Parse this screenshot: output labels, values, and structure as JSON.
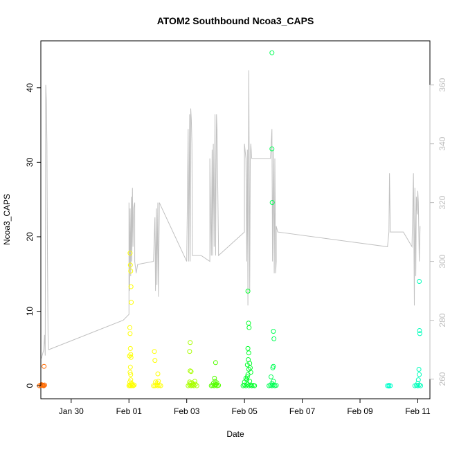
{
  "chart_data": {
    "type": "scatter",
    "title": "ATOM2 Southbound Ncoa3_CAPS",
    "xlabel": "Date",
    "ylabel": "Ncoa3_CAPS",
    "x_ticks": [
      "Jan 30",
      "Feb 01",
      "Feb 03",
      "Feb 05",
      "Feb 07",
      "Feb 09",
      "Feb 11"
    ],
    "xlim": [
      28.95,
      42.42
    ],
    "ylim": [
      -1.75,
      46.3
    ],
    "y_ticks": [
      0,
      10,
      20,
      30,
      40
    ],
    "y2lim": [
      253.3,
      375.0
    ],
    "y2_ticks": [
      260,
      280,
      300,
      320,
      340,
      360
    ],
    "grid": false,
    "legend": "none",
    "series": [
      {
        "color": "#ff6a00",
        "points": [
          [
            28.9,
            0
          ],
          [
            28.95,
            0.05
          ],
          [
            29.0,
            0.1
          ],
          [
            29.05,
            0
          ],
          [
            28.97,
            0.15
          ],
          [
            29.02,
            0.05
          ],
          [
            29.08,
            0.1
          ],
          [
            29.04,
            0
          ],
          [
            29.06,
            2.6
          ]
        ]
      },
      {
        "color": "#ffff00",
        "points": [
          [
            32.0,
            0
          ],
          [
            32.02,
            0.1
          ],
          [
            32.05,
            0
          ],
          [
            32.08,
            0.2
          ],
          [
            32.1,
            0
          ],
          [
            32.12,
            0.05
          ],
          [
            32.15,
            0
          ],
          [
            32.18,
            0.1
          ],
          [
            32.03,
            0.5
          ],
          [
            32.06,
            0.8
          ],
          [
            32.09,
            0.3
          ],
          [
            32.04,
            17.8
          ],
          [
            32.05,
            16.2
          ],
          [
            32.06,
            15.4
          ],
          [
            32.07,
            13.3
          ],
          [
            32.08,
            11.2
          ],
          [
            32.03,
            7.8
          ],
          [
            32.04,
            7.0
          ],
          [
            32.05,
            5.0
          ],
          [
            32.06,
            4.2
          ],
          [
            32.02,
            4.0
          ],
          [
            32.07,
            3.8
          ],
          [
            32.05,
            2.5
          ],
          [
            32.06,
            1.5
          ],
          [
            32.04,
            1.8
          ],
          [
            32.85,
            0
          ],
          [
            32.9,
            0
          ],
          [
            32.95,
            0.1
          ],
          [
            33.0,
            0
          ],
          [
            33.05,
            0.05
          ],
          [
            33.1,
            0
          ],
          [
            32.92,
            0.5
          ],
          [
            32.98,
            0.4
          ],
          [
            33.02,
            0.6
          ],
          [
            32.88,
            4.6
          ],
          [
            32.9,
            3.4
          ],
          [
            33.0,
            1.6
          ]
        ]
      },
      {
        "color": "#a8ff00",
        "points": [
          [
            34.05,
            0
          ],
          [
            34.1,
            0.1
          ],
          [
            34.15,
            0
          ],
          [
            34.2,
            0.05
          ],
          [
            34.25,
            0
          ],
          [
            34.3,
            0.2
          ],
          [
            34.35,
            0
          ],
          [
            34.12,
            0.3
          ],
          [
            34.22,
            0.2
          ],
          [
            34.1,
            0.5
          ],
          [
            34.18,
            0.4
          ],
          [
            34.28,
            0.6
          ],
          [
            34.12,
            5.8
          ],
          [
            34.1,
            4.6
          ],
          [
            34.15,
            1.9
          ],
          [
            34.12,
            2.0
          ]
        ]
      },
      {
        "color": "#55ff00",
        "points": [
          [
            34.85,
            0
          ],
          [
            34.9,
            0.05
          ],
          [
            34.95,
            0
          ],
          [
            35.0,
            0.1
          ],
          [
            35.05,
            0
          ],
          [
            35.1,
            0.05
          ],
          [
            34.92,
            0.3
          ],
          [
            34.98,
            0.6
          ],
          [
            35.02,
            0.2
          ],
          [
            34.96,
            1.0
          ],
          [
            35.0,
            3.1
          ],
          [
            35.04,
            0.4
          ]
        ]
      },
      {
        "color": "#00ff2a",
        "points": [
          [
            35.95,
            0
          ],
          [
            36.0,
            0.1
          ],
          [
            36.05,
            0
          ],
          [
            36.1,
            0.2
          ],
          [
            36.15,
            0
          ],
          [
            36.2,
            0.1
          ],
          [
            36.25,
            0
          ],
          [
            36.3,
            0.05
          ],
          [
            36.35,
            0
          ],
          [
            36.0,
            0.5
          ],
          [
            36.05,
            1.0
          ],
          [
            36.08,
            0.8
          ],
          [
            36.12,
            1.5
          ],
          [
            36.15,
            2.2
          ],
          [
            36.18,
            0.6
          ],
          [
            36.1,
            1.2
          ],
          [
            36.12,
            12.7
          ],
          [
            36.14,
            8.4
          ],
          [
            36.16,
            7.8
          ],
          [
            36.12,
            5.0
          ],
          [
            36.15,
            4.4
          ],
          [
            36.13,
            3.5
          ],
          [
            36.18,
            3.0
          ],
          [
            36.2,
            2.4
          ],
          [
            36.1,
            2.8
          ],
          [
            36.22,
            1.8
          ]
        ]
      },
      {
        "color": "#00ff55",
        "points": [
          [
            36.85,
            0
          ],
          [
            36.9,
            0.05
          ],
          [
            36.95,
            0
          ],
          [
            37.0,
            0.1
          ],
          [
            37.05,
            0
          ],
          [
            37.1,
            0.05
          ],
          [
            36.95,
            0.3
          ],
          [
            37.0,
            0.6
          ],
          [
            36.92,
            1.2
          ],
          [
            36.95,
            44.7
          ],
          [
            36.95,
            31.8
          ],
          [
            36.96,
            24.6
          ],
          [
            37.0,
            7.3
          ],
          [
            37.02,
            6.3
          ],
          [
            37.0,
            2.6
          ],
          [
            36.98,
            2.4
          ]
        ]
      },
      {
        "color": "#00ffcc",
        "points": [
          [
            40.95,
            0
          ],
          [
            41.0,
            0.05
          ],
          [
            41.05,
            0
          ],
          [
            41.0,
            -0.05
          ]
        ]
      },
      {
        "color": "#00ffbb",
        "points": [
          [
            41.9,
            0
          ],
          [
            41.95,
            0.05
          ],
          [
            42.0,
            0
          ],
          [
            42.05,
            0.1
          ],
          [
            42.1,
            0
          ],
          [
            42.0,
            0.3
          ],
          [
            42.02,
            0.8
          ],
          [
            42.05,
            1.5
          ],
          [
            42.04,
            2.2
          ],
          [
            42.05,
            14.0
          ],
          [
            42.06,
            7.4
          ],
          [
            42.07,
            7.0
          ]
        ]
      }
    ],
    "secondary_line": {
      "color": "#c0c0c0",
      "points": [
        [
          28.97,
          267
        ],
        [
          29.05,
          270
        ],
        [
          29.08,
          275
        ],
        [
          29.1,
          268
        ],
        [
          29.12,
          360
        ],
        [
          29.14,
          355
        ],
        [
          29.16,
          340
        ],
        [
          29.18,
          300
        ],
        [
          29.2,
          275
        ],
        [
          29.22,
          270
        ],
        [
          31.8,
          280
        ],
        [
          32.0,
          282
        ],
        [
          32.0,
          320
        ],
        [
          32.02,
          290
        ],
        [
          32.04,
          318
        ],
        [
          32.06,
          295
        ],
        [
          32.08,
          322
        ],
        [
          32.1,
          300
        ],
        [
          32.12,
          325
        ],
        [
          32.14,
          305
        ],
        [
          32.16,
          318
        ],
        [
          32.2,
          320
        ],
        [
          32.2,
          300
        ],
        [
          32.25,
          296
        ],
        [
          32.3,
          299
        ],
        [
          32.85,
          300
        ],
        [
          32.9,
          315
        ],
        [
          32.92,
          290
        ],
        [
          32.95,
          318
        ],
        [
          32.97,
          292
        ],
        [
          33.0,
          320
        ],
        [
          33.02,
          288
        ],
        [
          33.05,
          316
        ],
        [
          33.05,
          320
        ],
        [
          33.1,
          319
        ],
        [
          34.0,
          300
        ],
        [
          34.05,
          345
        ],
        [
          34.07,
          300
        ],
        [
          34.1,
          350
        ],
        [
          34.12,
          300
        ],
        [
          34.14,
          352
        ],
        [
          34.16,
          348
        ],
        [
          34.18,
          340
        ],
        [
          34.2,
          302
        ],
        [
          34.5,
          302
        ],
        [
          34.8,
          300
        ],
        [
          34.8,
          335
        ],
        [
          34.85,
          302
        ],
        [
          34.88,
          338
        ],
        [
          34.9,
          302
        ],
        [
          34.92,
          340
        ],
        [
          34.95,
          305
        ],
        [
          34.98,
          350
        ],
        [
          35.0,
          302
        ],
        [
          35.03,
          350
        ],
        [
          35.05,
          345
        ],
        [
          35.1,
          305
        ],
        [
          35.1,
          302
        ],
        [
          36.0,
          310
        ],
        [
          36.0,
          340
        ],
        [
          36.05,
          335
        ],
        [
          36.08,
          300
        ],
        [
          36.1,
          338
        ],
        [
          36.12,
          285
        ],
        [
          36.15,
          365
        ],
        [
          36.18,
          290
        ],
        [
          36.2,
          335
        ],
        [
          36.22,
          340
        ],
        [
          36.25,
          335
        ],
        [
          36.9,
          335
        ],
        [
          36.95,
          345
        ],
        [
          36.97,
          300
        ],
        [
          37.0,
          338
        ],
        [
          37.03,
          296
        ],
        [
          37.05,
          335
        ],
        [
          37.08,
          296
        ],
        [
          37.1,
          300
        ],
        [
          37.1,
          312
        ],
        [
          37.15,
          310
        ],
        [
          40.95,
          305
        ],
        [
          41.0,
          310
        ],
        [
          41.02,
          330
        ],
        [
          41.05,
          310
        ],
        [
          41.5,
          310
        ],
        [
          41.8,
          305
        ],
        [
          41.85,
          330
        ],
        [
          41.88,
          285
        ],
        [
          41.9,
          325
        ],
        [
          41.93,
          295
        ],
        [
          41.95,
          322
        ],
        [
          41.98,
          316
        ],
        [
          42.0,
          324
        ],
        [
          42.02,
          320
        ],
        [
          42.05,
          300
        ],
        [
          42.08,
          312
        ]
      ]
    }
  }
}
